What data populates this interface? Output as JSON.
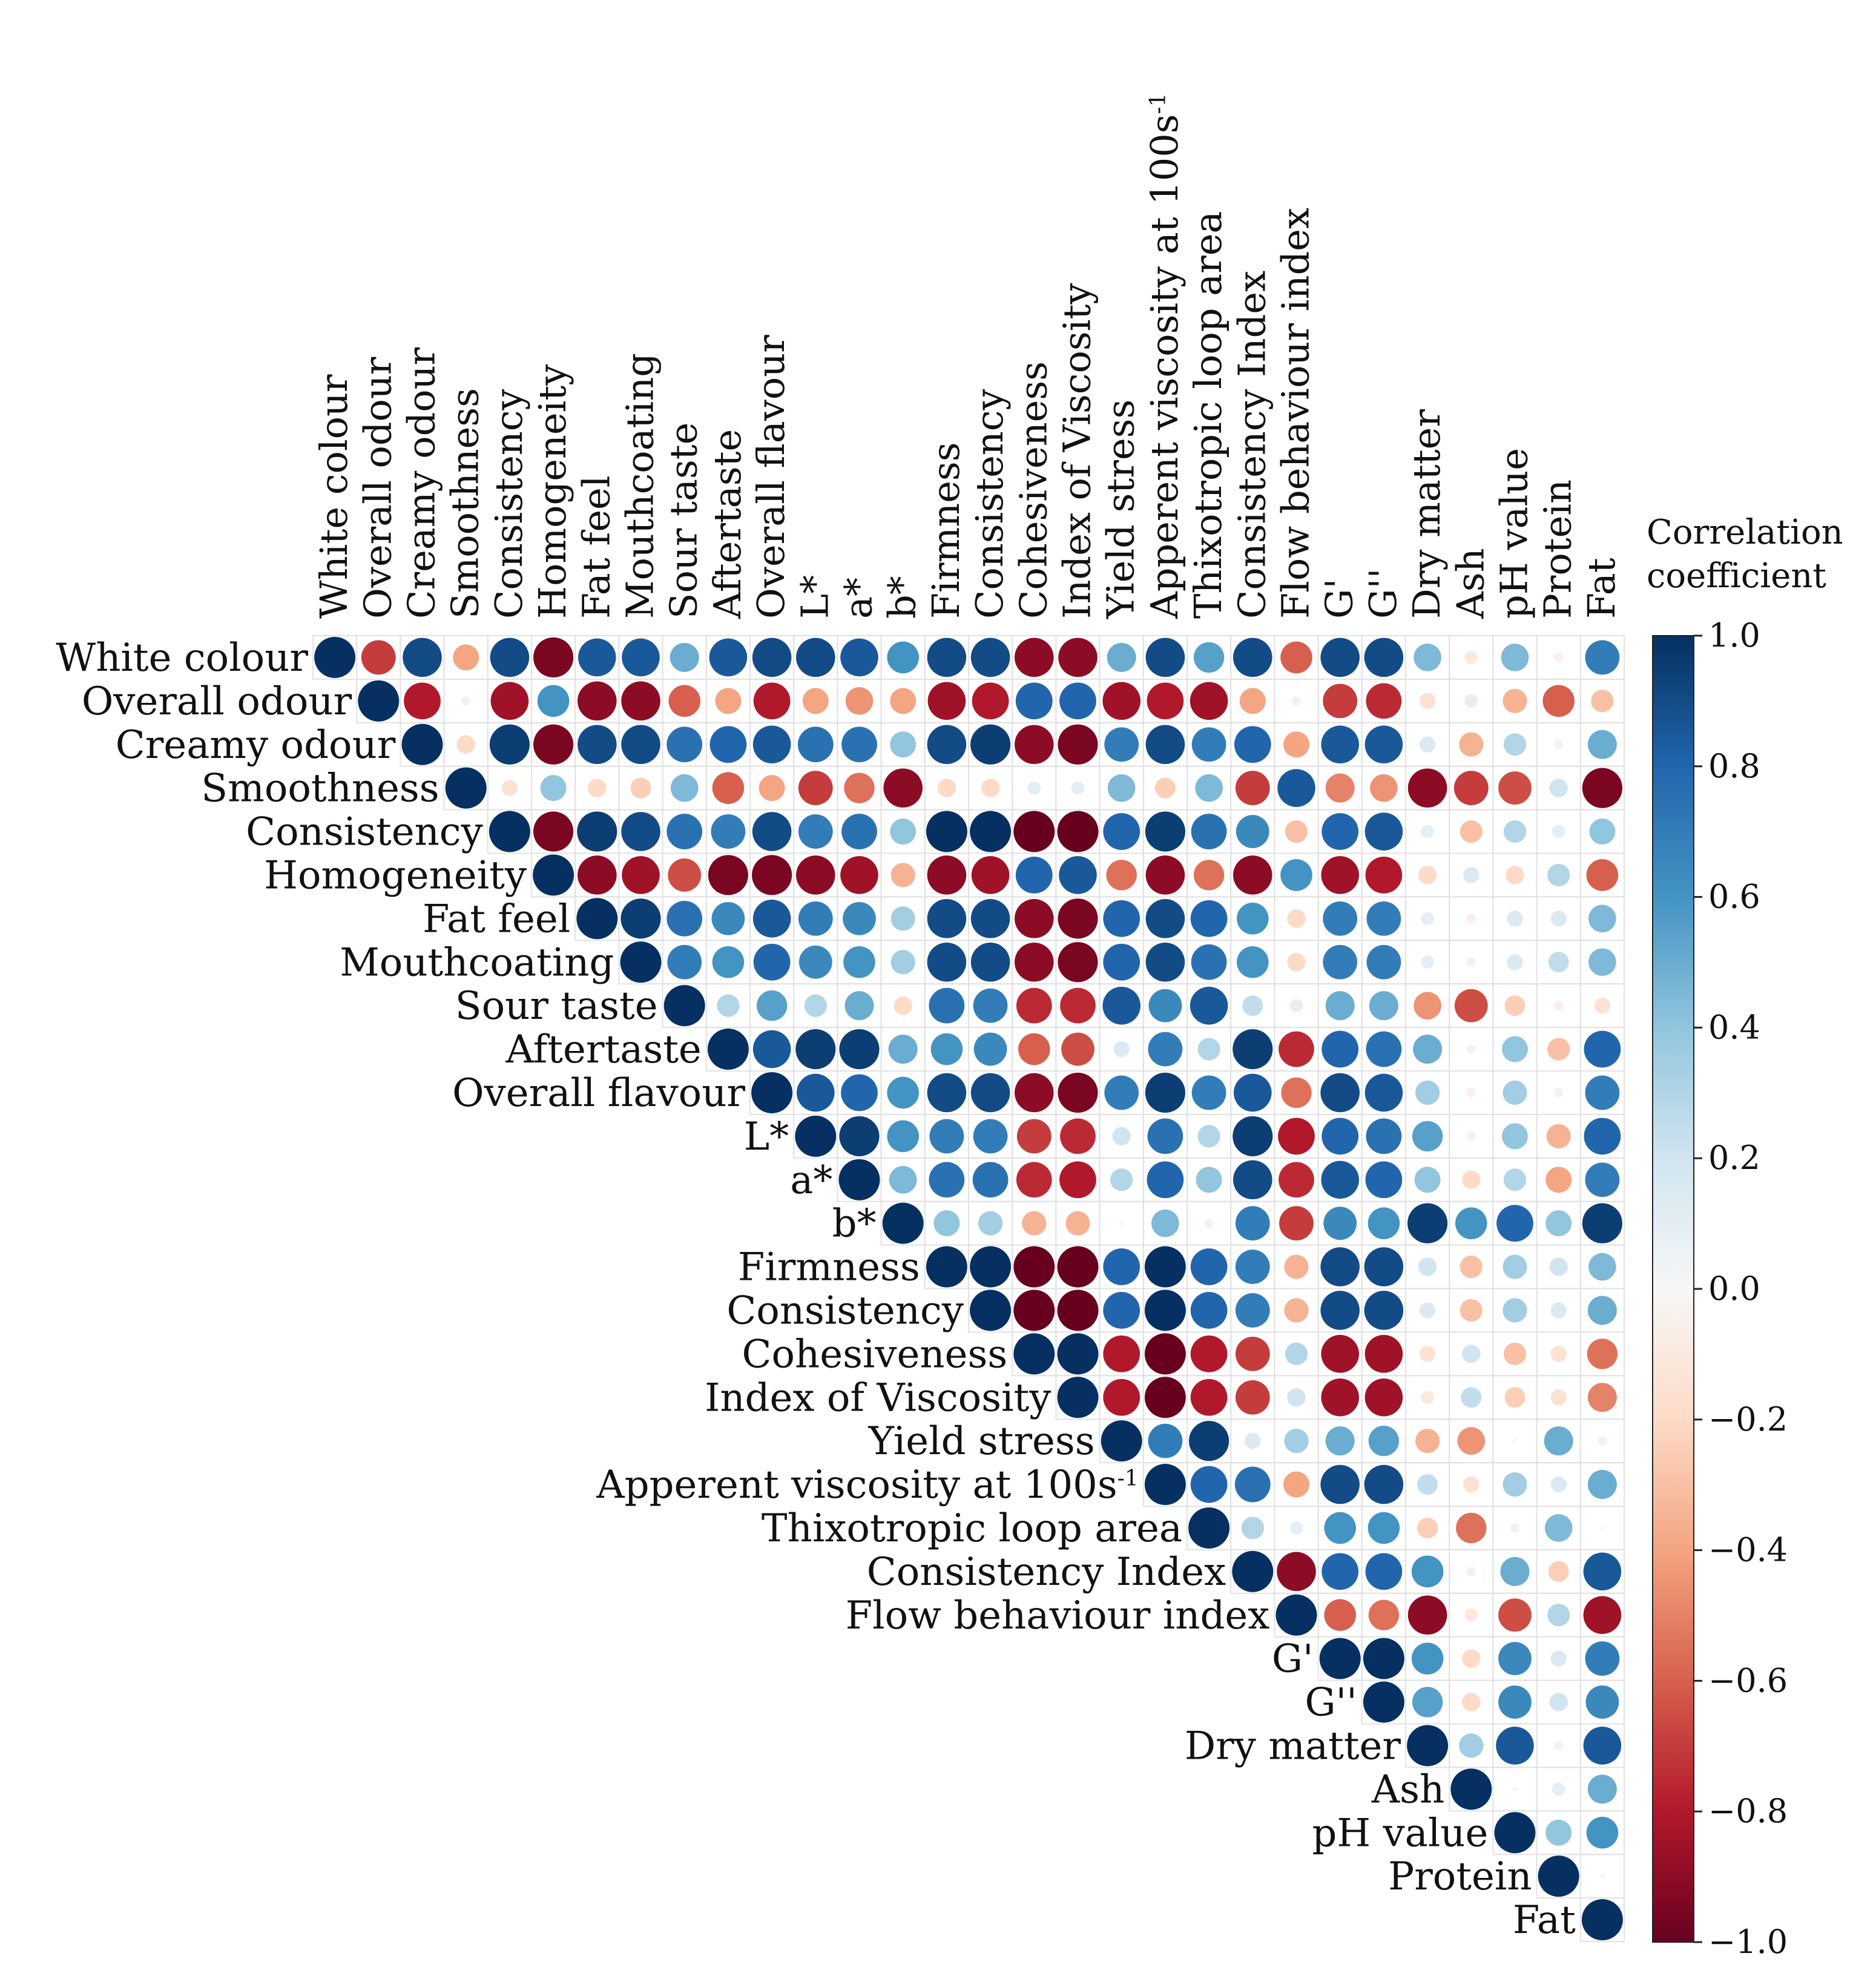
{
  "chart_data": {
    "type": "heatmap",
    "style": "upper-triangle correlation matrix, circle markers sized and coloured by coefficient",
    "variables": [
      "White colour",
      "Overall odour",
      "Creamy odour",
      "Smoothness",
      "Consistency",
      "Homogeneity",
      "Fat feel",
      "Mouthcoating",
      "Sour taste",
      "Aftertaste",
      "Overall flavour",
      "L*",
      "a*",
      "b*",
      "Firmness",
      "Consistency",
      "Cohesiveness",
      "Index of Viscosity",
      "Yield stress",
      "Apperent viscosity at 100s",
      "Thixotropic loop area",
      "Consistency Index",
      "Flow behaviour index",
      "G'",
      "G''",
      "Dry matter",
      "Ash",
      "pH value",
      "Protein",
      "Fat"
    ],
    "superscripts": {
      "19": "-1"
    },
    "matrix": [
      [
        1,
        -0.7,
        0.9,
        -0.4,
        0.9,
        -0.95,
        0.85,
        0.85,
        0.5,
        0.85,
        0.9,
        0.9,
        0.85,
        0.6,
        0.9,
        0.9,
        -0.9,
        -0.9,
        0.5,
        0.9,
        0.55,
        0.9,
        -0.6,
        0.9,
        0.9,
        0.45,
        -0.1,
        0.45,
        -0.05,
        0.7
      ],
      [
        0,
        1,
        -0.8,
        0.05,
        -0.85,
        0.6,
        -0.9,
        -0.9,
        -0.6,
        -0.4,
        -0.8,
        -0.4,
        -0.45,
        -0.4,
        -0.85,
        -0.8,
        0.8,
        0.8,
        -0.85,
        -0.8,
        -0.85,
        -0.4,
        0.05,
        -0.7,
        -0.75,
        -0.15,
        0.1,
        -0.35,
        -0.6,
        -0.3
      ],
      [
        0,
        0,
        1,
        -0.2,
        0.95,
        -0.95,
        0.9,
        0.9,
        0.75,
        0.8,
        0.85,
        0.75,
        0.75,
        0.4,
        0.9,
        0.95,
        -0.9,
        -0.95,
        0.7,
        0.9,
        0.7,
        0.8,
        -0.4,
        0.85,
        0.85,
        0.15,
        -0.35,
        0.3,
        -0.05,
        0.5
      ],
      [
        0,
        0,
        0,
        1,
        -0.15,
        0.4,
        -0.2,
        -0.25,
        0.45,
        -0.6,
        -0.4,
        -0.7,
        -0.55,
        -0.9,
        -0.2,
        -0.2,
        0.1,
        0.1,
        0.45,
        -0.25,
        0.45,
        -0.7,
        0.85,
        -0.5,
        -0.45,
        -0.9,
        -0.7,
        -0.65,
        0.2,
        -0.95
      ],
      [
        0,
        0,
        0,
        0,
        1,
        -0.95,
        0.95,
        0.9,
        0.75,
        0.7,
        0.9,
        0.7,
        0.75,
        0.4,
        1,
        1,
        -1,
        -1,
        0.8,
        0.95,
        0.75,
        0.65,
        -0.3,
        0.8,
        0.85,
        0.1,
        -0.3,
        0.3,
        0.1,
        0.4
      ],
      [
        0,
        0,
        0,
        0,
        0,
        1,
        -0.9,
        -0.85,
        -0.65,
        -0.95,
        -0.95,
        -0.9,
        -0.85,
        -0.35,
        -0.9,
        -0.85,
        0.8,
        0.85,
        -0.55,
        -0.9,
        -0.55,
        -0.9,
        0.6,
        -0.85,
        -0.8,
        -0.2,
        0.15,
        -0.2,
        0.3,
        -0.6
      ],
      [
        0,
        0,
        0,
        0,
        0,
        0,
        1,
        0.95,
        0.75,
        0.65,
        0.85,
        0.7,
        0.65,
        0.35,
        0.9,
        0.9,
        -0.9,
        -0.95,
        0.8,
        0.9,
        0.8,
        0.6,
        -0.2,
        0.7,
        0.7,
        0.1,
        -0.05,
        0.15,
        0.15,
        0.45
      ],
      [
        0,
        0,
        0,
        0,
        0,
        0,
        0,
        1,
        0.7,
        0.6,
        0.8,
        0.65,
        0.6,
        0.35,
        0.9,
        0.9,
        -0.9,
        -0.95,
        0.8,
        0.9,
        0.75,
        0.6,
        -0.2,
        0.7,
        0.7,
        0.1,
        -0.05,
        0.15,
        0.25,
        0.45
      ],
      [
        0,
        0,
        0,
        0,
        0,
        0,
        0,
        0,
        1,
        0.3,
        0.55,
        0.3,
        0.5,
        -0.2,
        0.75,
        0.7,
        -0.75,
        -0.75,
        0.85,
        0.65,
        0.85,
        0.25,
        0.1,
        0.5,
        0.5,
        -0.45,
        -0.65,
        -0.25,
        -0.05,
        -0.15
      ],
      [
        0,
        0,
        0,
        0,
        0,
        0,
        0,
        0,
        0,
        1,
        0.85,
        0.95,
        0.95,
        0.5,
        0.6,
        0.65,
        -0.6,
        -0.65,
        0.15,
        0.7,
        0.3,
        0.95,
        -0.75,
        0.8,
        0.75,
        0.5,
        0.05,
        0.4,
        -0.3,
        0.8
      ],
      [
        0,
        0,
        0,
        0,
        0,
        0,
        0,
        0,
        0,
        0,
        1,
        0.85,
        0.8,
        0.6,
        0.9,
        0.9,
        -0.9,
        -0.95,
        0.7,
        0.95,
        0.7,
        0.85,
        -0.55,
        0.9,
        0.85,
        0.35,
        -0.05,
        0.35,
        0.05,
        0.7
      ],
      [
        0,
        0,
        0,
        0,
        0,
        0,
        0,
        0,
        0,
        0,
        0,
        1,
        0.95,
        0.6,
        0.7,
        0.7,
        -0.7,
        -0.75,
        0.2,
        0.75,
        0.3,
        0.95,
        -0.8,
        0.8,
        0.75,
        0.55,
        -0.05,
        0.4,
        -0.35,
        0.8
      ],
      [
        0,
        0,
        0,
        0,
        0,
        0,
        0,
        0,
        0,
        0,
        0,
        0,
        1,
        0.45,
        0.75,
        0.75,
        -0.75,
        -0.8,
        0.3,
        0.8,
        0.4,
        0.9,
        -0.75,
        0.85,
        0.8,
        0.4,
        -0.2,
        0.3,
        -0.4,
        0.7
      ],
      [
        0,
        0,
        0,
        0,
        0,
        0,
        0,
        0,
        0,
        0,
        0,
        0,
        0,
        1,
        0.4,
        0.35,
        -0.35,
        -0.35,
        0,
        0.45,
        0.05,
        0.7,
        -0.7,
        0.65,
        0.6,
        0.95,
        0.6,
        0.8,
        0.4,
        0.95
      ],
      [
        0,
        0,
        0,
        0,
        0,
        0,
        0,
        0,
        0,
        0,
        0,
        0,
        0,
        0,
        1,
        1,
        -1,
        -1,
        0.8,
        1,
        0.8,
        0.7,
        -0.35,
        0.9,
        0.9,
        0.2,
        -0.3,
        0.35,
        0.2,
        0.45
      ],
      [
        0,
        0,
        0,
        0,
        0,
        0,
        0,
        0,
        0,
        0,
        0,
        0,
        0,
        0,
        0,
        1,
        -1,
        -1,
        0.8,
        1,
        0.8,
        0.7,
        -0.35,
        0.9,
        0.9,
        0.15,
        -0.3,
        0.35,
        0.15,
        0.5
      ],
      [
        0,
        0,
        0,
        0,
        0,
        0,
        0,
        0,
        0,
        0,
        0,
        0,
        0,
        0,
        0,
        0,
        1,
        1,
        -0.8,
        -1,
        -0.8,
        -0.7,
        0.3,
        -0.85,
        -0.85,
        -0.15,
        0.2,
        -0.3,
        -0.15,
        -0.55
      ],
      [
        0,
        0,
        0,
        0,
        0,
        0,
        0,
        0,
        0,
        0,
        0,
        0,
        0,
        0,
        0,
        0,
        0,
        1,
        -0.8,
        -1,
        -0.8,
        -0.7,
        0.2,
        -0.85,
        -0.85,
        -0.1,
        0.25,
        -0.25,
        -0.15,
        -0.5
      ],
      [
        0,
        0,
        0,
        0,
        0,
        0,
        0,
        0,
        0,
        0,
        0,
        0,
        0,
        0,
        0,
        0,
        0,
        0,
        1,
        0.7,
        0.95,
        0.15,
        0.35,
        0.5,
        0.55,
        -0.35,
        -0.45,
        0,
        0.5,
        -0.05
      ],
      [
        0,
        0,
        0,
        0,
        0,
        0,
        0,
        0,
        0,
        0,
        0,
        0,
        0,
        0,
        0,
        0,
        0,
        0,
        0,
        1,
        0.8,
        0.75,
        -0.4,
        0.9,
        0.9,
        0.25,
        -0.15,
        0.35,
        0.15,
        0.5
      ],
      [
        0,
        0,
        0,
        0,
        0,
        0,
        0,
        0,
        0,
        0,
        0,
        0,
        0,
        0,
        0,
        0,
        0,
        0,
        0,
        0,
        1,
        0.3,
        0.1,
        0.6,
        0.6,
        -0.25,
        -0.55,
        0.05,
        0.45,
        0
      ],
      [
        0,
        0,
        0,
        0,
        0,
        0,
        0,
        0,
        0,
        0,
        0,
        0,
        0,
        0,
        0,
        0,
        0,
        0,
        0,
        0,
        0,
        1,
        -0.9,
        0.8,
        0.8,
        0.6,
        0.05,
        0.5,
        -0.25,
        0.85
      ],
      [
        0,
        0,
        0,
        0,
        0,
        0,
        0,
        0,
        0,
        0,
        0,
        0,
        0,
        0,
        0,
        0,
        0,
        0,
        0,
        0,
        0,
        0,
        1,
        -0.6,
        -0.55,
        -0.9,
        -0.1,
        -0.65,
        0.3,
        -0.85
      ],
      [
        0,
        0,
        0,
        0,
        0,
        0,
        0,
        0,
        0,
        0,
        0,
        0,
        0,
        0,
        0,
        0,
        0,
        0,
        0,
        0,
        0,
        0,
        0,
        1,
        1,
        0.6,
        -0.2,
        0.65,
        0.15,
        0.7
      ],
      [
        0,
        0,
        0,
        0,
        0,
        0,
        0,
        0,
        0,
        0,
        0,
        0,
        0,
        0,
        0,
        0,
        0,
        0,
        0,
        0,
        0,
        0,
        0,
        0,
        1,
        0.55,
        -0.2,
        0.65,
        0.2,
        0.65
      ],
      [
        0,
        0,
        0,
        0,
        0,
        0,
        0,
        0,
        0,
        0,
        0,
        0,
        0,
        0,
        0,
        0,
        0,
        0,
        0,
        0,
        0,
        0,
        0,
        0,
        0,
        1,
        0.35,
        0.85,
        0.05,
        0.85
      ],
      [
        0,
        0,
        0,
        0,
        0,
        0,
        0,
        0,
        0,
        0,
        0,
        0,
        0,
        0,
        0,
        0,
        0,
        0,
        0,
        0,
        0,
        0,
        0,
        0,
        0,
        0,
        1,
        0,
        0.1,
        0.5
      ],
      [
        0,
        0,
        0,
        0,
        0,
        0,
        0,
        0,
        0,
        0,
        0,
        0,
        0,
        0,
        0,
        0,
        0,
        0,
        0,
        0,
        0,
        0,
        0,
        0,
        0,
        0,
        0,
        1,
        0.4,
        0.6
      ],
      [
        0,
        0,
        0,
        0,
        0,
        0,
        0,
        0,
        0,
        0,
        0,
        0,
        0,
        0,
        0,
        0,
        0,
        0,
        0,
        0,
        0,
        0,
        0,
        0,
        0,
        0,
        0,
        0,
        1,
        0
      ],
      [
        0,
        0,
        0,
        0,
        0,
        0,
        0,
        0,
        0,
        0,
        0,
        0,
        0,
        0,
        0,
        0,
        0,
        0,
        0,
        0,
        0,
        0,
        0,
        0,
        0,
        0,
        0,
        0,
        0,
        1
      ]
    ],
    "colorbar": {
      "title": [
        "Correlation",
        "coefficient"
      ],
      "range": [
        -1.0,
        1.0
      ],
      "ticks": [
        "1.0",
        "0.8",
        "0.6",
        "0.4",
        "0.2",
        "0.0",
        "−0.2",
        "−0.4",
        "−0.6",
        "−0.8",
        "−1.0"
      ],
      "colormap": "RdBu",
      "stops": [
        "#67001f",
        "#b2182b",
        "#d6604d",
        "#f4a582",
        "#fddbc7",
        "#f7f7f7",
        "#d1e5f0",
        "#92c5de",
        "#4393c3",
        "#2166ac",
        "#053061"
      ]
    }
  }
}
